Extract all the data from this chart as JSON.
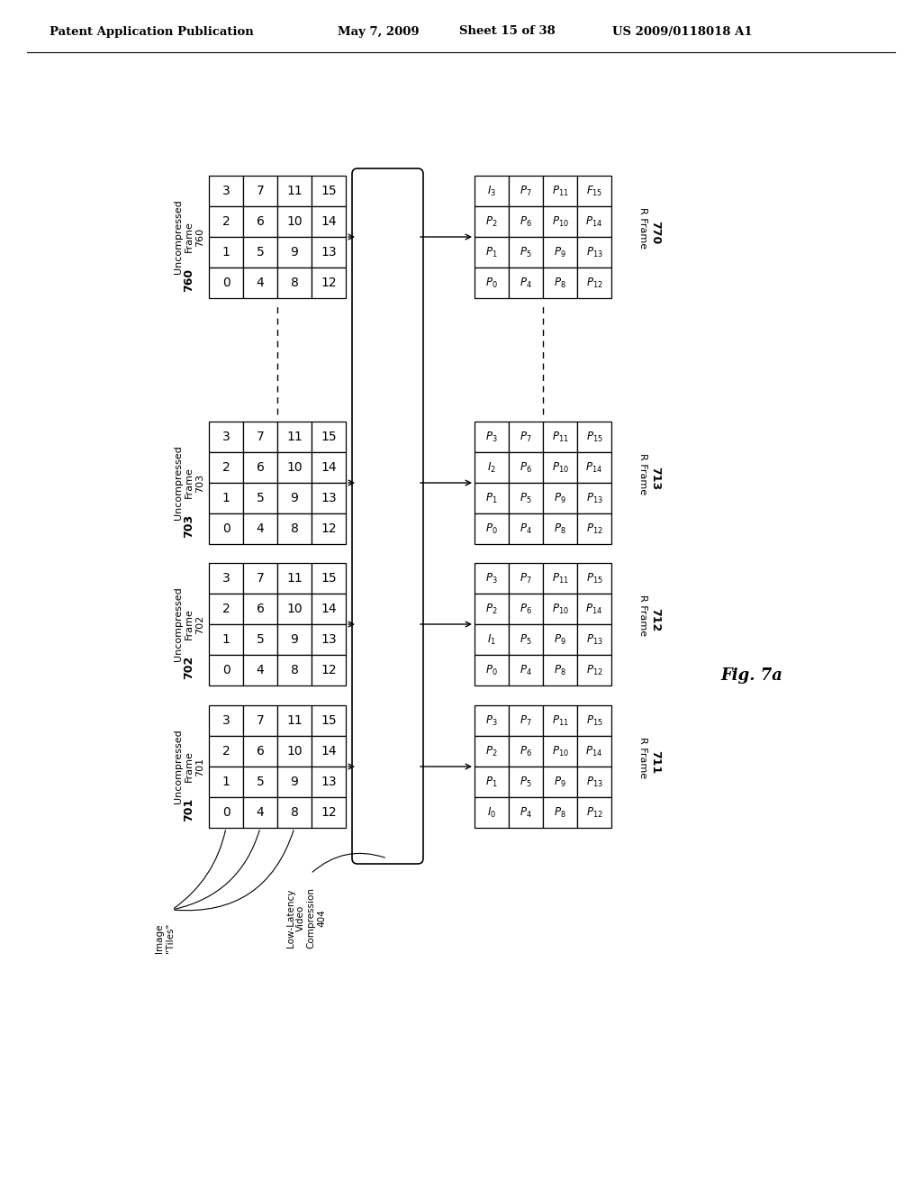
{
  "bg_color": "#ffffff",
  "header_left": "Patent Application Publication",
  "header_mid": "May 7, 2009   Sheet 15 of 38",
  "header_right": "US 2009/0118018 A1",
  "fig_label": "Fig. 7a",
  "left_grid_vals": [
    [
      "3",
      "7",
      "11",
      "15"
    ],
    [
      "2",
      "6",
      "10",
      "14"
    ],
    [
      "1",
      "5",
      "9",
      "13"
    ],
    [
      "0",
      "4",
      "8",
      "12"
    ]
  ],
  "right_grid_760": [
    [
      "I_3",
      "P_7",
      "P_{11}",
      "F_{15}"
    ],
    [
      "P_2",
      "P_6",
      "P_{10}",
      "P_{14}"
    ],
    [
      "P_1",
      "P_5",
      "P_9",
      "P_{13}"
    ],
    [
      "P_0",
      "P_4",
      "P_8",
      "P_{12}"
    ]
  ],
  "right_grid_703": [
    [
      "P_3",
      "P_7",
      "P_{11}",
      "P_{15}"
    ],
    [
      "I_2",
      "P_6",
      "P_{10}",
      "P_{14}"
    ],
    [
      "P_1",
      "P_5",
      "P_9",
      "P_{13}"
    ],
    [
      "P_0",
      "P_4",
      "P_8",
      "P_{12}"
    ]
  ],
  "right_grid_702": [
    [
      "P_3",
      "P_7",
      "P_{11}",
      "P_{15}"
    ],
    [
      "P_2",
      "P_6",
      "P_{10}",
      "P_{14}"
    ],
    [
      "I_1",
      "P_5",
      "P_9",
      "P_{13}"
    ],
    [
      "P_0",
      "P_4",
      "P_8",
      "P_{12}"
    ]
  ],
  "right_grid_711": [
    [
      "P_3",
      "P_7",
      "P_{11}",
      "P_{15}"
    ],
    [
      "P_2",
      "P_6",
      "P_{10}",
      "P_{14}"
    ],
    [
      "P_1",
      "P_5",
      "P_9",
      "P_{13}"
    ],
    [
      "I_0",
      "P_4",
      "P_8",
      "P_{12}"
    ]
  ],
  "frame_left_labels": [
    "760",
    "703",
    "702",
    "701"
  ],
  "frame_right_labels": [
    "770",
    "713",
    "712",
    "711"
  ]
}
